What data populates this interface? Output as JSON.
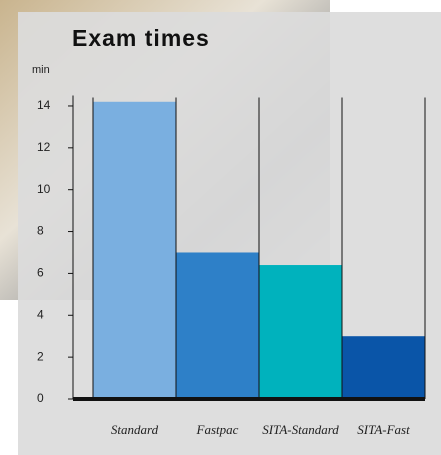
{
  "chart_data": {
    "type": "bar",
    "title": "Exam times",
    "y_label": "min",
    "categories": [
      "Standard",
      "Fastpac",
      "SITA-Standard",
      "SITA-Fast"
    ],
    "values": [
      14.2,
      7.0,
      6.4,
      3.0
    ],
    "colors": [
      "#7aafe0",
      "#2e80c8",
      "#00b2bd",
      "#0a55a8"
    ],
    "ylim": [
      0,
      14.5
    ],
    "yticks": [
      0,
      2,
      4,
      6,
      8,
      10,
      12,
      14
    ]
  }
}
